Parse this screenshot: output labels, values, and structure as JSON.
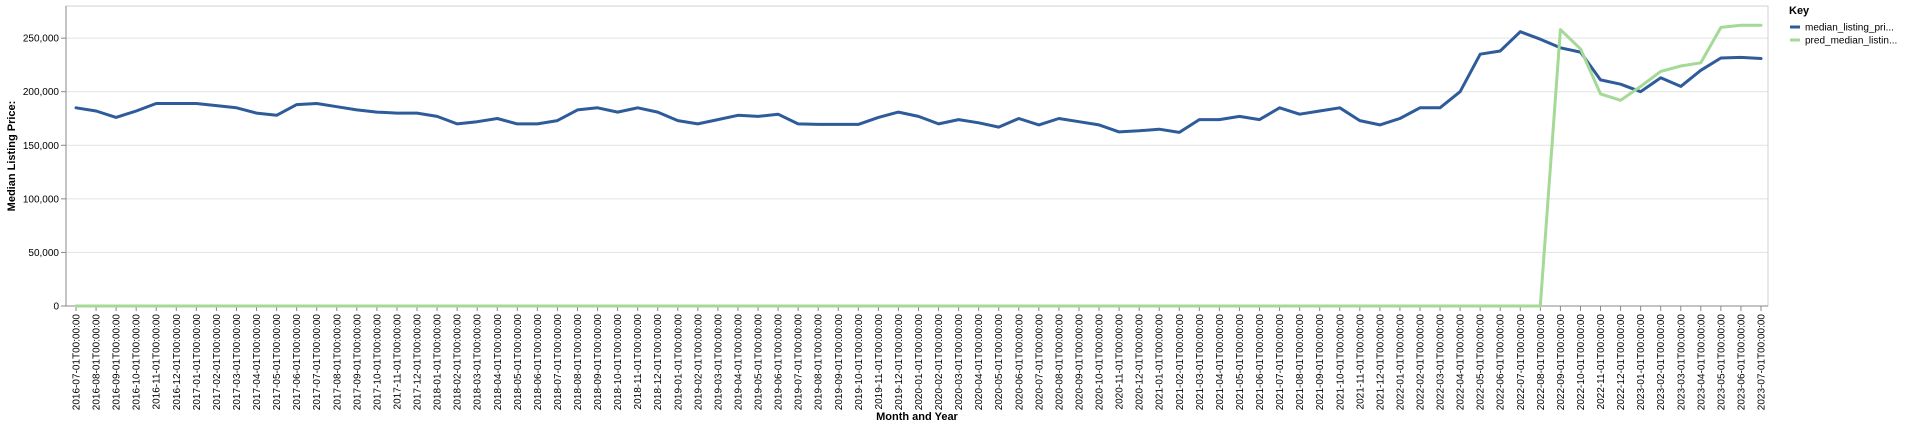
{
  "chart_data": {
    "type": "line",
    "xlabel": "Month and Year",
    "ylabel": "Median Listing Price:",
    "ylim": [
      0,
      280000
    ],
    "yticks": [
      0,
      50000,
      100000,
      150000,
      200000,
      250000
    ],
    "ytick_labels": [
      "0",
      "50,000",
      "100,000",
      "150,000",
      "200,000",
      "250,000"
    ],
    "grid": true,
    "legend": {
      "title": "Key",
      "placement": "top-right"
    },
    "x": [
      "2016-07-01T00:00:00",
      "2016-08-01T00:00:00",
      "2016-09-01T00:00:00",
      "2016-10-01T00:00:00",
      "2016-11-01T00:00:00",
      "2016-12-01T00:00:00",
      "2017-01-01T00:00:00",
      "2017-02-01T00:00:00",
      "2017-03-01T00:00:00",
      "2017-04-01T00:00:00",
      "2017-05-01T00:00:00",
      "2017-06-01T00:00:00",
      "2017-07-01T00:00:00",
      "2017-08-01T00:00:00",
      "2017-09-01T00:00:00",
      "2017-10-01T00:00:00",
      "2017-11-01T00:00:00",
      "2017-12-01T00:00:00",
      "2018-01-01T00:00:00",
      "2018-02-01T00:00:00",
      "2018-03-01T00:00:00",
      "2018-04-01T00:00:00",
      "2018-05-01T00:00:00",
      "2018-06-01T00:00:00",
      "2018-07-01T00:00:00",
      "2018-08-01T00:00:00",
      "2018-09-01T00:00:00",
      "2018-10-01T00:00:00",
      "2018-11-01T00:00:00",
      "2018-12-01T00:00:00",
      "2019-01-01T00:00:00",
      "2019-02-01T00:00:00",
      "2019-03-01T00:00:00",
      "2019-04-01T00:00:00",
      "2019-05-01T00:00:00",
      "2019-06-01T00:00:00",
      "2019-07-01T00:00:00",
      "2019-08-01T00:00:00",
      "2019-09-01T00:00:00",
      "2019-10-01T00:00:00",
      "2019-11-01T00:00:00",
      "2019-12-01T00:00:00",
      "2020-01-01T00:00:00",
      "2020-02-01T00:00:00",
      "2020-03-01T00:00:00",
      "2020-04-01T00:00:00",
      "2020-05-01T00:00:00",
      "2020-06-01T00:00:00",
      "2020-07-01T00:00:00",
      "2020-08-01T00:00:00",
      "2020-09-01T00:00:00",
      "2020-10-01T00:00:00",
      "2020-11-01T00:00:00",
      "2020-12-01T00:00:00",
      "2021-01-01T00:00:00",
      "2021-02-01T00:00:00",
      "2021-03-01T00:00:00",
      "2021-04-01T00:00:00",
      "2021-05-01T00:00:00",
      "2021-06-01T00:00:00",
      "2021-07-01T00:00:00",
      "2021-08-01T00:00:00",
      "2021-09-01T00:00:00",
      "2021-10-01T00:00:00",
      "2021-11-01T00:00:00",
      "2021-12-01T00:00:00",
      "2022-01-01T00:00:00",
      "2022-02-01T00:00:00",
      "2022-03-01T00:00:00",
      "2022-04-01T00:00:00",
      "2022-05-01T00:00:00",
      "2022-06-01T00:00:00",
      "2022-07-01T00:00:00",
      "2022-08-01T00:00:00",
      "2022-09-01T00:00:00",
      "2022-10-01T00:00:00",
      "2022-11-01T00:00:00",
      "2022-12-01T00:00:00",
      "2023-01-01T00:00:00",
      "2023-02-01T00:00:00",
      "2023-03-01T00:00:00",
      "2023-04-01T00:00:00",
      "2023-05-01T00:00:00",
      "2023-06-01T00:00:00",
      "2023-07-01T00:00:00"
    ],
    "series": [
      {
        "name": "median_listing_pri...",
        "color": "#2e5b9a",
        "values": [
          185000,
          182000,
          176000,
          182000,
          189000,
          189000,
          189000,
          187000,
          185000,
          180000,
          178000,
          188000,
          189000,
          186000,
          183000,
          181000,
          180000,
          180000,
          177000,
          170000,
          172000,
          175000,
          170000,
          170000,
          173000,
          183000,
          185000,
          181000,
          185000,
          181000,
          173000,
          170000,
          174000,
          178000,
          177000,
          179000,
          170000,
          169500,
          169500,
          169500,
          176000,
          181000,
          177000,
          170000,
          174000,
          171000,
          167000,
          175000,
          169000,
          175000,
          172000,
          169000,
          162500,
          163500,
          165000,
          162000,
          174000,
          174000,
          177000,
          174000,
          185000,
          179000,
          182000,
          185000,
          173000,
          169000,
          175000,
          185000,
          185000,
          200000,
          235000,
          238000,
          256000,
          249000,
          241000,
          237000,
          211000,
          207000,
          200000,
          213000,
          205000,
          220000,
          231500,
          232000,
          231000
        ]
      },
      {
        "name": "pred_median_listin...",
        "color": "#a4d996",
        "values": [
          0,
          0,
          0,
          0,
          0,
          0,
          0,
          0,
          0,
          0,
          0,
          0,
          0,
          0,
          0,
          0,
          0,
          0,
          0,
          0,
          0,
          0,
          0,
          0,
          0,
          0,
          0,
          0,
          0,
          0,
          0,
          0,
          0,
          0,
          0,
          0,
          0,
          0,
          0,
          0,
          0,
          0,
          0,
          0,
          0,
          0,
          0,
          0,
          0,
          0,
          0,
          0,
          0,
          0,
          0,
          0,
          0,
          0,
          0,
          0,
          0,
          0,
          0,
          0,
          0,
          0,
          0,
          0,
          0,
          0,
          0,
          0,
          0,
          0,
          258000,
          240000,
          198000,
          192000,
          205000,
          219000,
          224000,
          227000,
          260000,
          262000,
          262000
        ]
      }
    ]
  }
}
